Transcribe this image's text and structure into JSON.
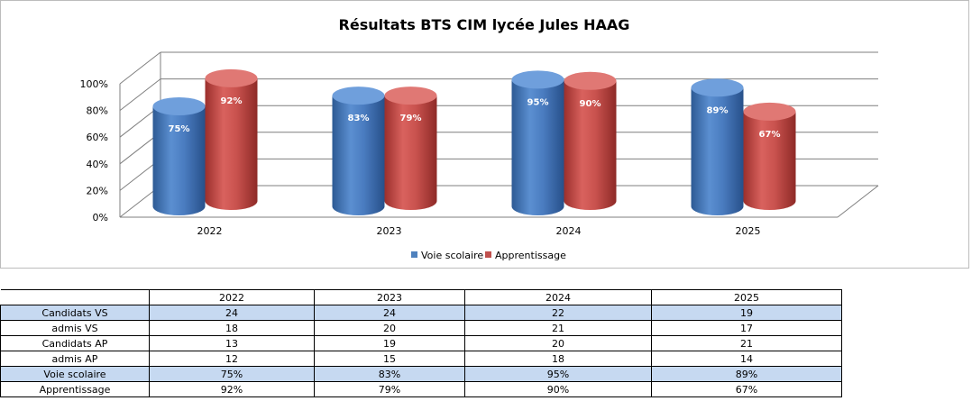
{
  "chart_data": {
    "type": "bar",
    "title": "Résultats BTS CIM lycée Jules HAAG",
    "categories": [
      "2022",
      "2023",
      "2024",
      "2025"
    ],
    "series": [
      {
        "name": "Voie scolaire",
        "values": [
          75,
          83,
          95,
          89
        ],
        "labels": [
          "75%",
          "83%",
          "95%",
          "89%"
        ],
        "color": "#4f81bd"
      },
      {
        "name": "Apprentissage",
        "values": [
          92,
          79,
          90,
          67
        ],
        "labels": [
          "92%",
          "79%",
          "90%",
          "67%"
        ],
        "color": "#c0504d"
      }
    ],
    "yticks": [
      "0%",
      "20%",
      "40%",
      "60%",
      "80%",
      "100%"
    ],
    "ylim": [
      0,
      100
    ],
    "grid": true,
    "legend": "bottom"
  },
  "table": {
    "columns": [
      "2022",
      "2023",
      "2024",
      "2025"
    ],
    "rows": [
      {
        "label": "Candidats VS",
        "values": [
          "24",
          "24",
          "22",
          "19"
        ],
        "shaded": true
      },
      {
        "label": "admis VS",
        "values": [
          "18",
          "20",
          "21",
          "17"
        ],
        "shaded": false
      },
      {
        "label": "Candidats AP",
        "values": [
          "13",
          "19",
          "20",
          "21"
        ],
        "shaded": false
      },
      {
        "label": "admis AP",
        "values": [
          "12",
          "15",
          "18",
          "14"
        ],
        "shaded": false
      },
      {
        "label": "Voie scolaire",
        "values": [
          "75%",
          "83%",
          "95%",
          "89%"
        ],
        "shaded": true
      },
      {
        "label": "Apprentissage",
        "values": [
          "92%",
          "79%",
          "90%",
          "67%"
        ],
        "shaded": false
      }
    ]
  }
}
